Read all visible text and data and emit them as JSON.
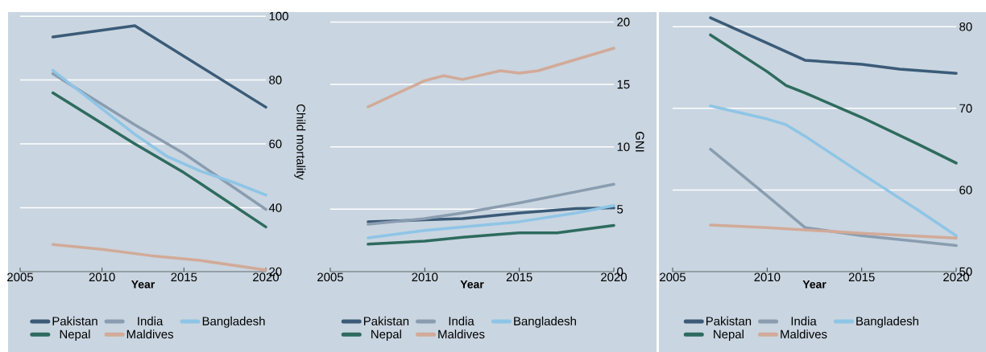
{
  "chart_data": [
    {
      "type": "line",
      "xlabel": "Year",
      "ylabel": "Child mortality",
      "xlim": [
        2005,
        2020
      ],
      "ylim": [
        20,
        101.3
      ],
      "xticks": [
        2005,
        2010,
        2015,
        2020
      ],
      "yticks": [
        20,
        40,
        60,
        80,
        100
      ],
      "grid": "y",
      "legend": "bottom",
      "series": [
        {
          "name": "Pakistan",
          "color": "#3b5b78",
          "x": [
            2007,
            2012,
            2020
          ],
          "values": [
            93.5,
            97,
            71.5
          ]
        },
        {
          "name": "India",
          "color": "#8a9db0",
          "x": [
            2007,
            2012,
            2015,
            2017,
            2020
          ],
          "values": [
            82,
            66,
            57,
            50,
            39.5
          ]
        },
        {
          "name": "Bangladesh",
          "color": "#8ec5e6",
          "x": [
            2007,
            2010,
            2012,
            2014,
            2016,
            2018,
            2020
          ],
          "values": [
            83,
            71,
            63,
            56,
            51.5,
            48,
            44
          ]
        },
        {
          "name": "Nepal",
          "color": "#2e6b5e",
          "x": [
            2007,
            2012,
            2015,
            2020
          ],
          "values": [
            76,
            60,
            51,
            34
          ]
        },
        {
          "name": "Maldives",
          "color": "#d2aa98",
          "x": [
            2007,
            2010,
            2013,
            2016,
            2020
          ],
          "values": [
            28.5,
            27,
            25,
            23.5,
            20.5
          ]
        }
      ]
    },
    {
      "type": "line",
      "xlabel": "Year",
      "ylabel": "GNI",
      "xlim": [
        2005,
        2020
      ],
      "ylim": [
        0,
        20.8
      ],
      "xticks": [
        2005,
        2010,
        2015,
        2020
      ],
      "yticks": [
        0,
        5,
        10,
        15,
        20
      ],
      "grid": "y",
      "legend": "bottom",
      "series": [
        {
          "name": "Pakistan",
          "color": "#3b5b78",
          "x": [
            2007,
            2010,
            2012,
            2015,
            2018,
            2020
          ],
          "values": [
            4.0,
            4.15,
            4.25,
            4.7,
            5.05,
            5.1
          ]
        },
        {
          "name": "India",
          "color": "#8a9db0",
          "x": [
            2007,
            2010,
            2012,
            2015,
            2018,
            2020
          ],
          "values": [
            3.8,
            4.25,
            4.7,
            5.5,
            6.4,
            7.0
          ]
        },
        {
          "name": "Bangladesh",
          "color": "#8ec5e6",
          "x": [
            2007,
            2010,
            2015,
            2018,
            2020
          ],
          "values": [
            2.7,
            3.3,
            4.0,
            4.7,
            5.3
          ]
        },
        {
          "name": "Nepal",
          "color": "#2e6b5e",
          "x": [
            2007,
            2010,
            2012,
            2014,
            2015,
            2017,
            2020
          ],
          "values": [
            2.2,
            2.45,
            2.75,
            3.0,
            3.1,
            3.1,
            3.7
          ]
        },
        {
          "name": "Maldives",
          "color": "#d2aa98",
          "x": [
            2007,
            2010,
            2011,
            2012,
            2014,
            2015,
            2016,
            2018,
            2020
          ],
          "values": [
            13.2,
            15.3,
            15.7,
            15.4,
            16.1,
            15.9,
            16.1,
            17.0,
            17.9
          ]
        }
      ]
    },
    {
      "type": "line",
      "xlabel": "Year",
      "xlim": [
        2005,
        2020
      ],
      "ylim": [
        50,
        81.8
      ],
      "xticks": [
        2005,
        2010,
        2015,
        2020
      ],
      "yticks": [
        50,
        60,
        70,
        80
      ],
      "grid": "y",
      "legend": "bottom",
      "series": [
        {
          "name": "Pakistan",
          "color": "#3b5b78",
          "x": [
            2007,
            2010,
            2012,
            2015,
            2017,
            2020
          ],
          "values": [
            81.1,
            78.0,
            75.9,
            75.4,
            74.8,
            74.3
          ]
        },
        {
          "name": "India",
          "color": "#8a9db0",
          "x": [
            2007,
            2010,
            2012,
            2015,
            2018,
            2020
          ],
          "values": [
            65.0,
            59.3,
            55.4,
            54.4,
            53.7,
            53.2
          ]
        },
        {
          "name": "Bangladesh",
          "color": "#8ec5e6",
          "x": [
            2007,
            2010,
            2011,
            2012,
            2015,
            2018,
            2020
          ],
          "values": [
            70.3,
            68.7,
            68.0,
            66.6,
            62.0,
            57.5,
            54.4
          ]
        },
        {
          "name": "Nepal",
          "color": "#2e6b5e",
          "x": [
            2007,
            2010,
            2011,
            2012,
            2015,
            2018,
            2020
          ],
          "values": [
            79.0,
            74.5,
            72.8,
            71.9,
            68.9,
            65.6,
            63.3
          ]
        },
        {
          "name": "Maldives",
          "color": "#d2aa98",
          "x": [
            2007,
            2010,
            2015,
            2020
          ],
          "values": [
            55.7,
            55.4,
            54.7,
            54.1
          ]
        }
      ]
    }
  ]
}
